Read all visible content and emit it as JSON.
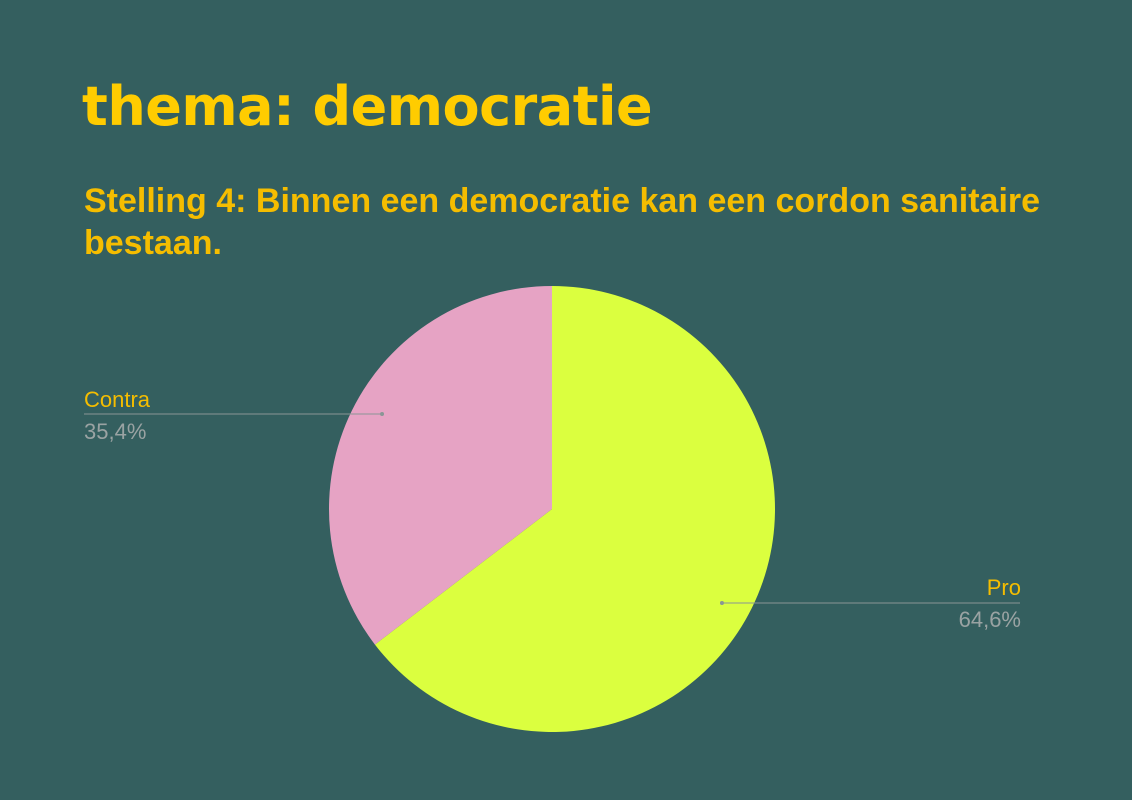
{
  "header": {
    "title": "thema: democratie"
  },
  "chart_data": {
    "type": "pie",
    "title": "Stelling 4: Binnen een democratie kan een cordon sanitaire bestaan.",
    "categories": [
      "Pro",
      "Contra"
    ],
    "values": [
      64.6,
      35.4
    ],
    "value_labels": [
      "64,6%",
      "35,4%"
    ],
    "colors": [
      "#dbff3f",
      "#e6a3c4"
    ],
    "start_angle": "top",
    "direction": "clockwise",
    "label_color": "#f5bd00",
    "value_color": "#9aa3a3",
    "leader_color": "#8a9696"
  }
}
